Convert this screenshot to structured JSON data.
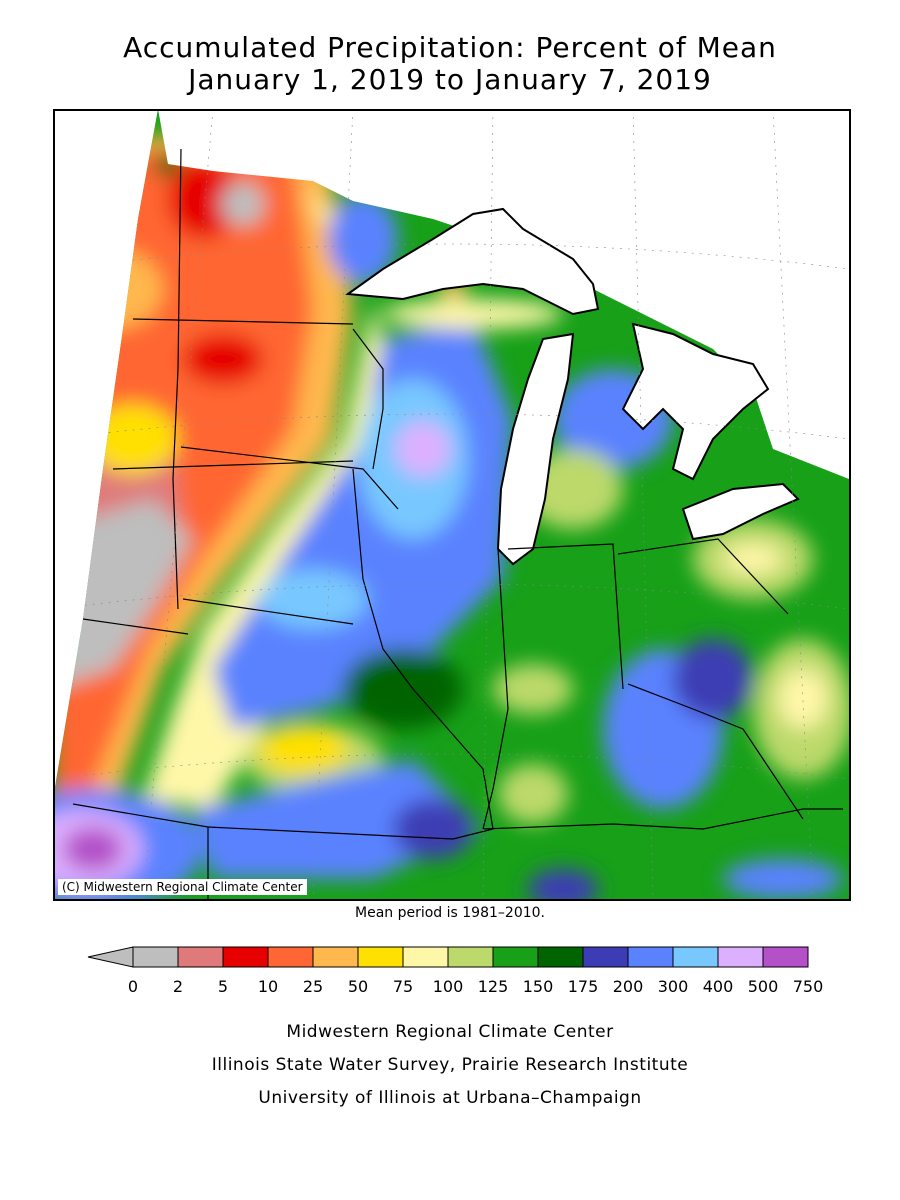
{
  "title": {
    "line1": "Accumulated Precipitation: Percent of Mean",
    "line2": "January 1, 2019 to January 7, 2019"
  },
  "copyright": "(C) Midwestern Regional Climate Center",
  "mean_note": "Mean period is 1981–2010.",
  "legend": {
    "ticks": [
      "0",
      "2",
      "5",
      "10",
      "25",
      "50",
      "75",
      "100",
      "125",
      "150",
      "175",
      "200",
      "300",
      "400",
      "500",
      "750"
    ],
    "colors": [
      "#bebebe",
      "#e07a7a",
      "#e60000",
      "#ff6633",
      "#ffb84d",
      "#ffe000",
      "#fff7a8",
      "#bcd96b",
      "#17a018",
      "#006400",
      "#3c3cb4",
      "#5a82ff",
      "#78c8ff",
      "#ddb0ff",
      "#b450c8"
    ],
    "under_color": "#bebebe"
  },
  "footer": {
    "line1": "Midwestern Regional Climate Center",
    "line2": "Illinois State Water Survey, Prairie Research Institute",
    "line3": "University of Illinois at Urbana–Champaign"
  }
}
